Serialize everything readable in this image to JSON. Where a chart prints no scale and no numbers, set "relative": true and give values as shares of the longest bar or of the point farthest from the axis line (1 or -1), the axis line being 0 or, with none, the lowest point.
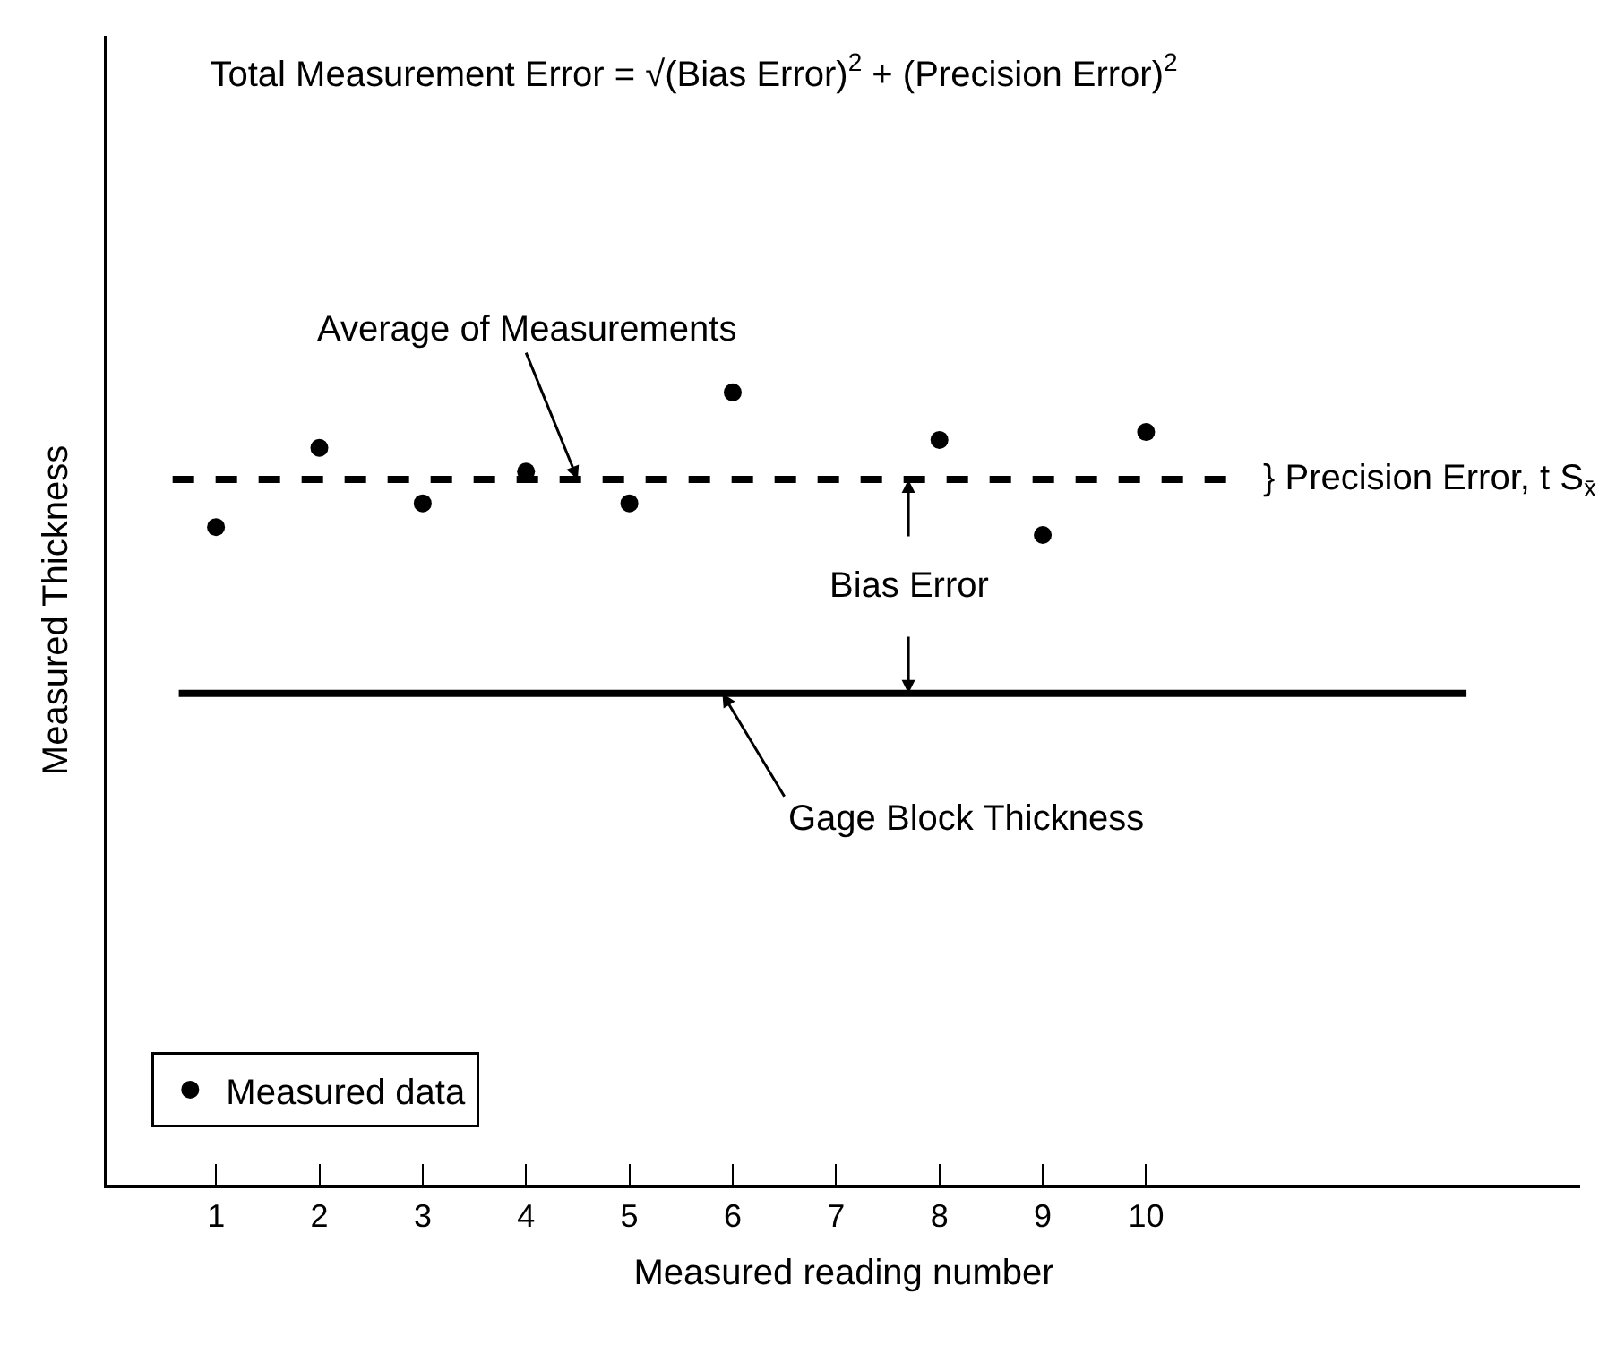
{
  "chart_data": {
    "type": "scatter",
    "relative": true,
    "title": "Total Measurement Error = √(Bias Error)$^{2}$ + (Precision Error)$^{2}$",
    "xlabel": "Measured reading number",
    "ylabel": "Measured Thickness",
    "categories": [
      "1",
      "2",
      "3",
      "4",
      "5",
      "6",
      "7",
      "8",
      "9",
      "10"
    ],
    "series": [
      {
        "name": "Measured data",
        "color": "#000000",
        "values": [
          0.83,
          0.93,
          0.86,
          0.9,
          0.86,
          1,
          null,
          0.94,
          0.82,
          0.95
        ]
      }
    ],
    "ref_lines": [
      {
        "axis": "y",
        "value": 0.89,
        "label": "Average of Measurements",
        "color": "#000000",
        "line_style": "dashed"
      },
      {
        "axis": "y",
        "value": 0.62,
        "label": "Gage Block Thickness",
        "color": "#000000",
        "line_style": "solid"
      }
    ],
    "annotations": [
      "Bias Error",
      "} Precision Error, t S$_{x̄}$"
    ],
    "marker": "circle",
    "legend": "bottom left"
  }
}
